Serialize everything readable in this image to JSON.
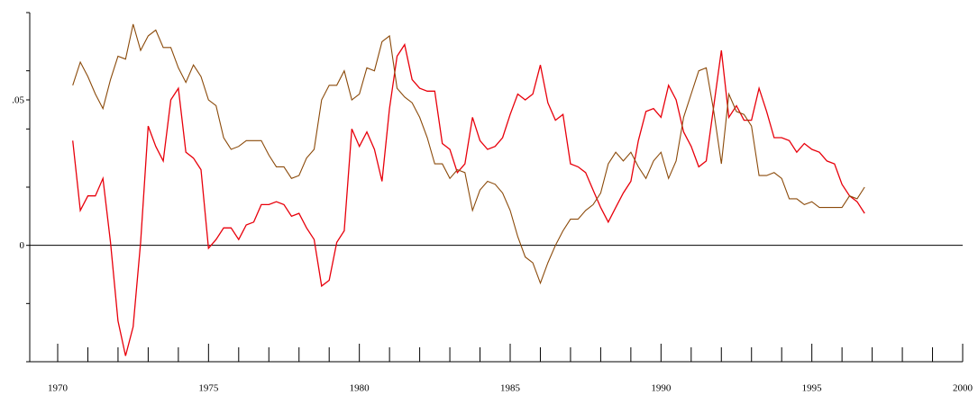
{
  "chart_data": {
    "type": "line",
    "x": [
      1970.5,
      1970.75,
      1971,
      1971.25,
      1971.5,
      1971.75,
      1972,
      1972.25,
      1972.5,
      1972.75,
      1973,
      1973.25,
      1973.5,
      1973.75,
      1974,
      1974.25,
      1974.5,
      1974.75,
      1975,
      1975.25,
      1975.5,
      1975.75,
      1976,
      1976.25,
      1976.5,
      1976.75,
      1977,
      1977.25,
      1977.5,
      1977.75,
      1978,
      1978.25,
      1978.5,
      1978.75,
      1979,
      1979.25,
      1979.5,
      1979.75,
      1980,
      1980.25,
      1980.5,
      1980.75,
      1981,
      1981.25,
      1981.5,
      1981.75,
      1982,
      1982.25,
      1982.5,
      1982.75,
      1983,
      1983.25,
      1983.5,
      1983.75,
      1984,
      1984.25,
      1984.5,
      1984.75,
      1985,
      1985.25,
      1985.5,
      1985.75,
      1986,
      1986.25,
      1986.5,
      1986.75,
      1987,
      1987.25,
      1987.5,
      1987.75,
      1988,
      1988.25,
      1988.5,
      1988.75,
      1989,
      1989.25,
      1989.5,
      1989.75,
      1990,
      1990.25,
      1990.5,
      1990.75,
      1991,
      1991.25,
      1991.5,
      1991.75,
      1992,
      1992.25,
      1992.5,
      1992.75,
      1993,
      1993.25,
      1993.5,
      1993.75,
      1994,
      1994.25,
      1994.5,
      1994.75,
      1995,
      1995.25,
      1995.5,
      1995.75,
      1996,
      1996.25,
      1996.5,
      1996.75
    ],
    "series": [
      {
        "color": "#e8000b",
        "values": [
          0.036,
          0.012,
          0.017,
          0.017,
          0.023,
          0.001,
          -0.026,
          -0.038,
          -0.028,
          0.001,
          0.041,
          0.034,
          0.029,
          0.05,
          0.054,
          0.032,
          0.03,
          0.026,
          -0.001,
          0.002,
          0.006,
          0.006,
          0.002,
          0.007,
          0.008,
          0.014,
          0.014,
          0.015,
          0.014,
          0.01,
          0.011,
          0.006,
          0.002,
          -0.014,
          -0.012,
          0.001,
          0.005,
          0.04,
          0.034,
          0.039,
          0.033,
          0.022,
          0.047,
          0.065,
          0.069,
          0.057,
          0.054,
          0.053,
          0.053,
          0.035,
          0.033,
          0.025,
          0.028,
          0.044,
          0.036,
          0.033,
          0.034,
          0.037,
          0.045,
          0.052,
          0.05,
          0.052,
          0.062,
          0.049,
          0.043,
          0.045,
          0.028,
          0.027,
          0.025,
          0.019,
          0.013,
          0.008,
          0.013,
          0.018,
          0.022,
          0.036,
          0.046,
          0.047,
          0.044,
          0.055,
          0.05,
          0.039,
          0.034,
          0.027,
          0.029,
          0.048,
          0.067,
          0.044,
          0.048,
          0.043,
          0.043,
          0.054,
          0.046,
          0.037,
          0.037,
          0.036,
          0.032,
          0.035,
          0.033,
          0.032,
          0.029,
          0.028,
          0.021,
          0.017,
          0.015,
          0.011
        ]
      },
      {
        "color": "#8b4a0a",
        "values": [
          0.055,
          0.063,
          0.058,
          0.052,
          0.047,
          0.057,
          0.065,
          0.064,
          0.076,
          0.067,
          0.072,
          0.074,
          0.068,
          0.068,
          0.061,
          0.056,
          0.062,
          0.058,
          0.05,
          0.048,
          0.037,
          0.033,
          0.034,
          0.036,
          0.036,
          0.036,
          0.031,
          0.027,
          0.027,
          0.023,
          0.024,
          0.03,
          0.033,
          0.05,
          0.055,
          0.055,
          0.06,
          0.05,
          0.052,
          0.061,
          0.06,
          0.07,
          0.072,
          0.054,
          0.051,
          0.049,
          0.044,
          0.037,
          0.028,
          0.028,
          0.023,
          0.026,
          0.025,
          0.012,
          0.019,
          0.022,
          0.021,
          0.018,
          0.012,
          0.003,
          -0.004,
          -0.006,
          -0.013,
          -0.006,
          0.0,
          0.005,
          0.009,
          0.009,
          0.012,
          0.014,
          0.018,
          0.028,
          0.032,
          0.029,
          0.032,
          0.027,
          0.023,
          0.029,
          0.032,
          0.023,
          0.029,
          0.044,
          0.052,
          0.06,
          0.061,
          0.046,
          0.028,
          0.052,
          0.046,
          0.045,
          0.041,
          0.024,
          0.024,
          0.025,
          0.023,
          0.016,
          0.016,
          0.014,
          0.015,
          0.013,
          0.013,
          0.013,
          0.013,
          0.017,
          0.016,
          0.02
        ]
      }
    ],
    "xlim": [
      1970,
      2000
    ],
    "xticks": [
      1970,
      1975,
      1980,
      1985,
      1990,
      1995,
      2000
    ],
    "xminor_ticks": [
      1971,
      1972,
      1973,
      1974,
      1976,
      1977,
      1978,
      1979,
      1981,
      1982,
      1983,
      1984,
      1986,
      1987,
      1988,
      1989,
      1991,
      1992,
      1993,
      1994,
      1996,
      1997,
      1998,
      1999
    ],
    "ylim": [
      -0.04,
      0.08
    ],
    "yticks": [
      0,
      {
        "value": 0.05,
        "label": ".05"
      }
    ],
    "yminor_ticks": [
      -0.04,
      -0.02,
      0.02,
      0.04,
      0.06,
      0.08
    ]
  }
}
